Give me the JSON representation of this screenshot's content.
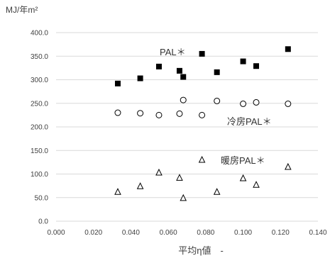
{
  "chart_data": {
    "type": "scatter",
    "title": "",
    "ylabel": "MJ/年m²",
    "xlabel": "平均η値　-",
    "xlim": [
      0.0,
      0.14
    ],
    "ylim": [
      0.0,
      400.0
    ],
    "x_ticks": [
      "0.000",
      "0.020",
      "0.040",
      "0.060",
      "0.080",
      "0.100",
      "0.120",
      "0.140"
    ],
    "y_ticks": [
      "0.0",
      "50.0",
      "100.0",
      "150.0",
      "200.0",
      "250.0",
      "300.0",
      "350.0",
      "400.0"
    ],
    "grid": "horizontal",
    "legend": "none",
    "series": [
      {
        "name": "PAL＊",
        "marker": "filled-square",
        "color": "#000000",
        "points": [
          {
            "x": 0.033,
            "y": 292
          },
          {
            "x": 0.045,
            "y": 303
          },
          {
            "x": 0.055,
            "y": 328
          },
          {
            "x": 0.066,
            "y": 319
          },
          {
            "x": 0.068,
            "y": 306
          },
          {
            "x": 0.078,
            "y": 355
          },
          {
            "x": 0.086,
            "y": 316
          },
          {
            "x": 0.1,
            "y": 339
          },
          {
            "x": 0.107,
            "y": 329
          },
          {
            "x": 0.124,
            "y": 365
          }
        ]
      },
      {
        "name": "冷房PAL＊",
        "marker": "open-circle",
        "color": "#000000",
        "points": [
          {
            "x": 0.033,
            "y": 230
          },
          {
            "x": 0.045,
            "y": 229
          },
          {
            "x": 0.055,
            "y": 225
          },
          {
            "x": 0.066,
            "y": 228
          },
          {
            "x": 0.068,
            "y": 257
          },
          {
            "x": 0.078,
            "y": 225
          },
          {
            "x": 0.086,
            "y": 255
          },
          {
            "x": 0.1,
            "y": 249
          },
          {
            "x": 0.107,
            "y": 252
          },
          {
            "x": 0.124,
            "y": 249
          }
        ]
      },
      {
        "name": "暖房PAL＊",
        "marker": "open-triangle",
        "color": "#000000",
        "points": [
          {
            "x": 0.033,
            "y": 62
          },
          {
            "x": 0.045,
            "y": 74
          },
          {
            "x": 0.055,
            "y": 103
          },
          {
            "x": 0.066,
            "y": 92
          },
          {
            "x": 0.068,
            "y": 49
          },
          {
            "x": 0.078,
            "y": 130
          },
          {
            "x": 0.086,
            "y": 62
          },
          {
            "x": 0.1,
            "y": 91
          },
          {
            "x": 0.107,
            "y": 77
          },
          {
            "x": 0.124,
            "y": 115
          }
        ]
      }
    ]
  }
}
